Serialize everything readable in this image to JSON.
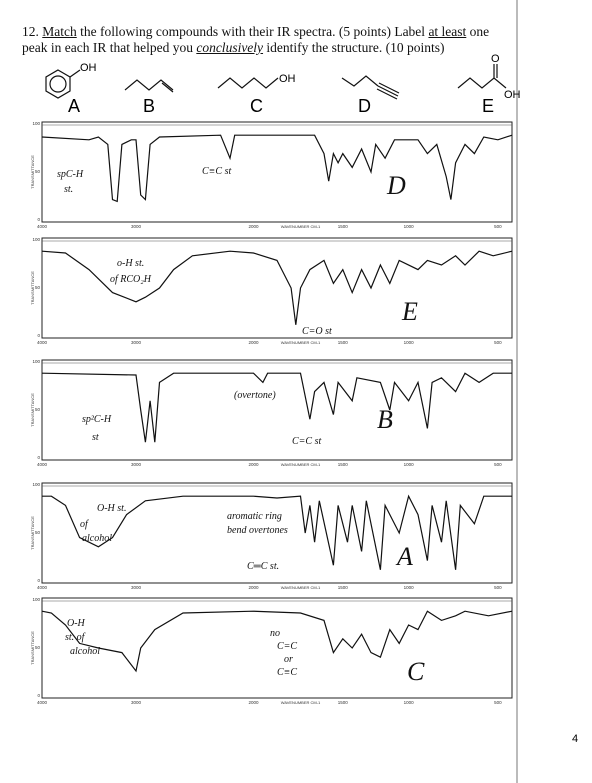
{
  "question": {
    "segments": [
      "12. ",
      "Match",
      " the following compounds with their IR spectra.  (5 points)  Label ",
      "at least",
      " one peak in each IR that helped you ",
      "conclusively",
      " identify the structure.  (10 points)"
    ]
  },
  "compounds": [
    {
      "label": "A",
      "atoms": [
        "OH"
      ]
    },
    {
      "label": "B",
      "atoms": []
    },
    {
      "label": "C",
      "atoms": [
        "OH"
      ]
    },
    {
      "label": "D",
      "atoms": []
    },
    {
      "label": "E",
      "atoms": [
        "O",
        "OH"
      ]
    }
  ],
  "axis": {
    "x_ticks": [
      "4000",
      "3000",
      "2000",
      "1500",
      "1000",
      "500"
    ],
    "y_ticks": [
      "100",
      "50",
      "0"
    ],
    "x_label": "WAVENUMBER CM-1",
    "y_label": "TRANSMITTANCE"
  },
  "spectra": [
    {
      "answer": "D",
      "annotations": [
        "spC-H",
        "st.",
        "C≡C st"
      ]
    },
    {
      "answer": "E",
      "annotations": [
        "o-H st.",
        "of RCO₂H",
        "C=O st"
      ]
    },
    {
      "answer": "B",
      "annotations": [
        "sp²C-H",
        "st",
        "(overtone)",
        "C=C st"
      ]
    },
    {
      "answer": "A",
      "annotations": [
        "O-H st.",
        "of",
        "alcohol",
        "aromatic ring",
        "bend overtones",
        "C═C st."
      ]
    },
    {
      "answer": "C",
      "annotations": [
        "O-H",
        "st. of",
        "alcohol",
        "no",
        "C=C",
        "or",
        "C≡C"
      ]
    }
  ],
  "page_number": "4"
}
